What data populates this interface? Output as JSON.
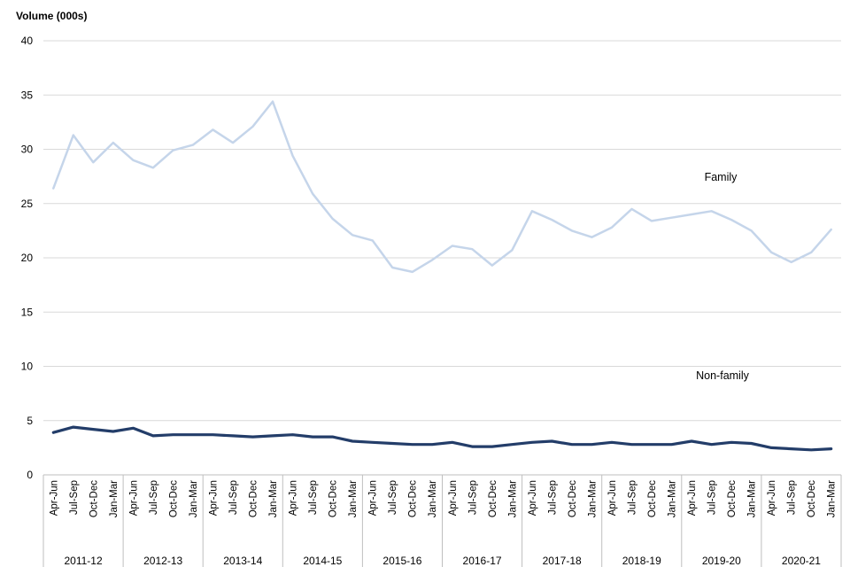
{
  "chart_data": {
    "type": "line",
    "title": "",
    "ylabel": "Volume (000s)",
    "xlabel": "",
    "ylim": [
      0,
      40
    ],
    "yticks": [
      0,
      5,
      10,
      15,
      20,
      25,
      30,
      35,
      40
    ],
    "grid": true,
    "legend": "none",
    "quarters": [
      "Apr-Jun",
      "Jul-Sep",
      "Oct-Dec",
      "Jan-Mar"
    ],
    "groups": [
      "2011-12",
      "2012-13",
      "2013-14",
      "2014-15",
      "2015-16",
      "2016-17",
      "2017-18",
      "2018-19",
      "2019-20",
      "2020-21"
    ],
    "series": [
      {
        "name": "Family",
        "color": "#c5d5ea",
        "values": [
          26.4,
          31.3,
          28.8,
          30.6,
          29.0,
          28.3,
          29.9,
          30.4,
          31.8,
          30.6,
          32.1,
          34.4,
          29.4,
          25.9,
          23.6,
          22.1,
          21.6,
          19.1,
          18.7,
          19.8,
          21.1,
          20.8,
          19.3,
          20.7,
          24.3,
          23.5,
          22.5,
          21.9,
          22.8,
          24.5,
          23.4,
          23.7,
          24.0,
          24.3,
          23.5,
          22.5,
          20.5,
          19.6,
          20.5,
          22.6
        ]
      },
      {
        "name": "Non-family",
        "color": "#233d69",
        "values": [
          3.9,
          4.4,
          4.2,
          4.0,
          4.3,
          3.6,
          3.7,
          3.7,
          3.7,
          3.6,
          3.5,
          3.6,
          3.7,
          3.5,
          3.5,
          3.1,
          3.0,
          2.9,
          2.8,
          2.8,
          3.0,
          2.6,
          2.6,
          2.8,
          3.0,
          3.1,
          2.8,
          2.8,
          3.0,
          2.8,
          2.8,
          2.8,
          3.1,
          2.8,
          3.0,
          2.9,
          2.5,
          2.4,
          2.3,
          2.4
        ]
      }
    ]
  }
}
